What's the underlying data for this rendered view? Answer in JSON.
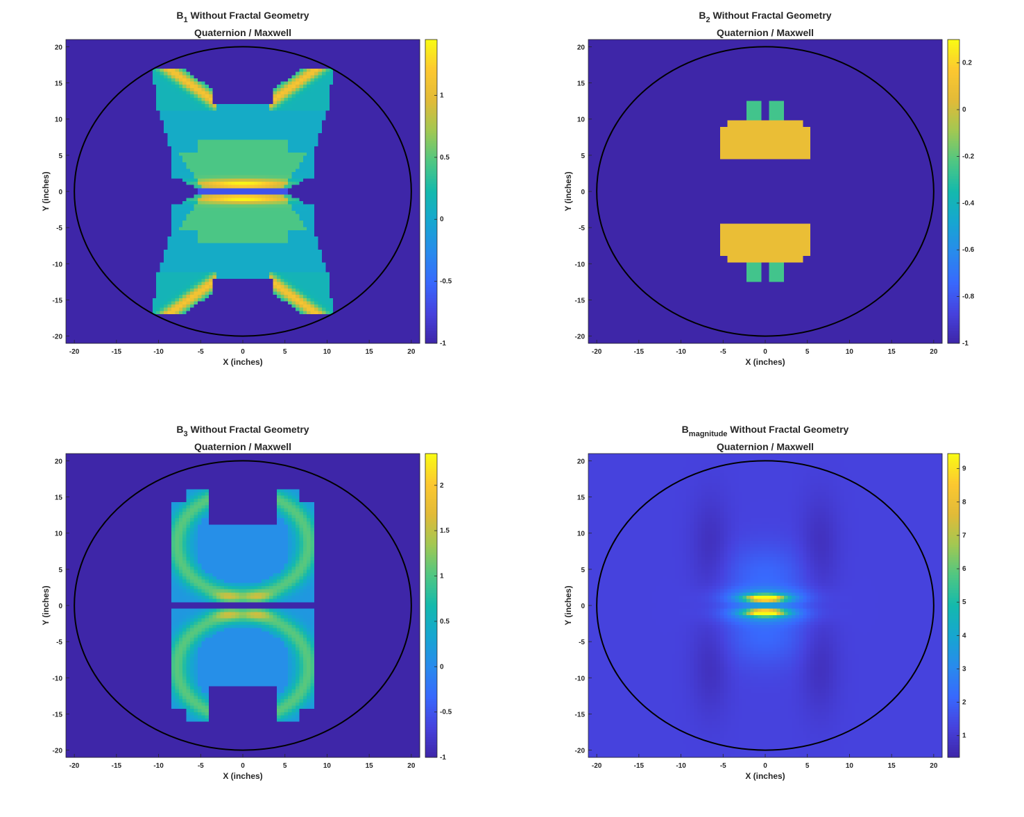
{
  "chart_data": [
    {
      "type": "heatmap",
      "title_main": "B",
      "title_sub": "1",
      "title_rest": " Without Fractal Geometry",
      "subtitle": "Quaternion / Maxwell",
      "xlabel": "X (inches)",
      "ylabel": "Y (inches)",
      "xlim": [
        -21,
        21
      ],
      "ylim": [
        -21,
        21
      ],
      "x_ticks": [
        -20,
        -15,
        -10,
        -5,
        0,
        5,
        10,
        15,
        20
      ],
      "y_ticks": [
        20,
        15,
        10,
        5,
        0,
        -5,
        -10,
        -15,
        -20
      ],
      "colorbar_range": [
        -1,
        1.45
      ],
      "colorbar_ticks": [
        1,
        0.5,
        0,
        -0.5,
        -1
      ],
      "colorbar_tick_labels": [
        "1",
        "0.5",
        "0",
        "-0.5",
        "-1"
      ],
      "boundary_circle_radius": 20,
      "colormap": "parula",
      "background_value": -1
    },
    {
      "type": "heatmap",
      "title_main": "B",
      "title_sub": "2",
      "title_rest": " Without Fractal Geometry",
      "subtitle": "Quaternion / Maxwell",
      "xlabel": "X (inches)",
      "ylabel": "Y (inches)",
      "xlim": [
        -21,
        21
      ],
      "ylim": [
        -21,
        21
      ],
      "x_ticks": [
        -20,
        -15,
        -10,
        -5,
        0,
        5,
        10,
        15,
        20
      ],
      "y_ticks": [
        20,
        15,
        10,
        5,
        0,
        -5,
        -10,
        -15,
        -20
      ],
      "colorbar_range": [
        -1,
        0.3
      ],
      "colorbar_ticks": [
        0.2,
        0,
        -0.2,
        -0.4,
        -0.6,
        -0.8,
        -1
      ],
      "colorbar_tick_labels": [
        "0.2",
        "0",
        "-0.2",
        "-0.4",
        "-0.6",
        "-0.8",
        "-1"
      ],
      "boundary_circle_radius": 20,
      "colormap": "parula",
      "background_value": -1
    },
    {
      "type": "heatmap",
      "title_main": "B",
      "title_sub": "3",
      "title_rest": " Without Fractal Geometry",
      "subtitle": "Quaternion / Maxwell",
      "xlabel": "X (inches)",
      "ylabel": "Y (inches)",
      "xlim": [
        -21,
        21
      ],
      "ylim": [
        -21,
        21
      ],
      "x_ticks": [
        -20,
        -15,
        -10,
        -5,
        0,
        5,
        10,
        15,
        20
      ],
      "y_ticks": [
        20,
        15,
        10,
        5,
        0,
        -5,
        -10,
        -15,
        -20
      ],
      "colorbar_range": [
        -1,
        2.35
      ],
      "colorbar_ticks": [
        2,
        1.5,
        1,
        0.5,
        0,
        -0.5,
        -1
      ],
      "colorbar_tick_labels": [
        "2",
        "1.5",
        "1",
        "0.5",
        "0",
        "-0.5",
        "-1"
      ],
      "boundary_circle_radius": 20,
      "colormap": "parula",
      "background_value": -1
    },
    {
      "type": "heatmap",
      "title_main": "B",
      "title_sub": "magnitude",
      "title_rest": " Without Fractal Geometry",
      "subtitle": "Quaternion / Maxwell",
      "xlabel": "X (inches)",
      "ylabel": "Y (inches)",
      "xlim": [
        -21,
        21
      ],
      "ylim": [
        -21,
        21
      ],
      "x_ticks": [
        -20,
        -15,
        -10,
        -5,
        0,
        5,
        10,
        15,
        20
      ],
      "y_ticks": [
        20,
        15,
        10,
        5,
        0,
        -5,
        -10,
        -15,
        -20
      ],
      "colorbar_range": [
        0.35,
        9.45
      ],
      "colorbar_ticks": [
        9,
        8,
        7,
        6,
        5,
        4,
        3,
        2,
        1
      ],
      "colorbar_tick_labels": [
        "9",
        "8",
        "7",
        "6",
        "5",
        "4",
        "3",
        "2",
        "1"
      ],
      "boundary_circle_radius": 20,
      "colormap": "parula",
      "background_value": 1
    }
  ]
}
